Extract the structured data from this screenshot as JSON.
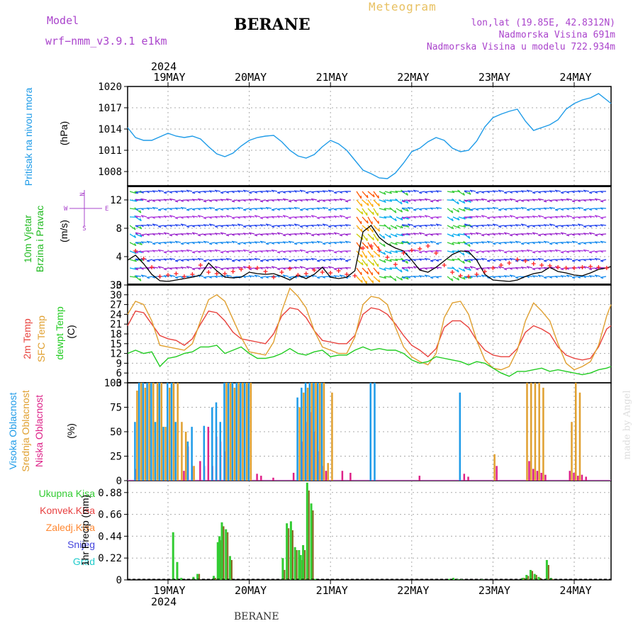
{
  "header": {
    "model_label": "Model",
    "model_name": "wrf−nmm_v3.9.1  e1km",
    "station_title": "BERANE",
    "app_title": "Meteogram",
    "coords": "lon,lat (19.85E, 42.8312N)",
    "elevation": "Nadmorska Visina 691m",
    "model_elevation": "Nadmorska Visina u modelu 722.934m",
    "year_top": "2024",
    "year_bottom": "2024",
    "footer_station": "BERANE",
    "credit": "made by Angel"
  },
  "colors": {
    "pressure": "#1e9be8",
    "temp2m": "#e8413c",
    "sfc": "#e0a030",
    "dew": "#22cc22",
    "high_cloud": "#1e9be8",
    "mid_cloud": "#e0a030",
    "low_cloud": "#dd2288",
    "total_precip": "#33cc33",
    "conv_precip": "#e84040",
    "frozen_precip": "#ff8833",
    "snow": "#4444dd",
    "graupel": "#22cccc",
    "wind_label": "#22bb22",
    "wind_compass": "#aa44cc",
    "model_text": "#aa44cc",
    "app_title": "#e8c060"
  },
  "panels": {
    "pressure": {
      "label": "Pritisak na nivou mora",
      "unit": "(hPa)"
    },
    "wind": {
      "label": "10m Vjetar\nBrzina i Pravac",
      "unit": "(m/s)",
      "compass": "N\n<–|–>\nW  –|–  E\nS"
    },
    "temp": {
      "label_2m": "2m Temp",
      "label_sfc": "SFC Temp",
      "label_dew": "dewpt Temp",
      "unit": "(C)"
    },
    "cloud": {
      "label_high": "Visoka Oblacnost",
      "label_mid": "Srednja Oblacnost",
      "label_low": "Niska Oblacnost",
      "unit": "(%)"
    },
    "precip": {
      "legend": [
        "Ukupna Kisa",
        "Konvek.Kisa",
        "Zaledj.Kisa",
        "Snijeg",
        "Grad"
      ],
      "unit": "1hr Precip (mm)"
    }
  },
  "chart_data": [
    {
      "type": "line",
      "panel": "pressure",
      "x_unit": "days since 19 May 2024 00:00",
      "x": [
        -0.5,
        -0.4,
        -0.3,
        -0.2,
        -0.1,
        0.0,
        0.1,
        0.2,
        0.3,
        0.4,
        0.5,
        0.6,
        0.7,
        0.8,
        0.9,
        1.0,
        1.1,
        1.2,
        1.3,
        1.4,
        1.5,
        1.6,
        1.7,
        1.8,
        1.9,
        2.0,
        2.1,
        2.2,
        2.3,
        2.4,
        2.5,
        2.6,
        2.7,
        2.8,
        2.9,
        3.0,
        3.1,
        3.2,
        3.3,
        3.4,
        3.5,
        3.6,
        3.7,
        3.8,
        3.9,
        4.0,
        4.1,
        4.2,
        4.3,
        4.4,
        4.5,
        4.6,
        4.7,
        4.8,
        4.9,
        5.0,
        5.1,
        5.2,
        5.3,
        5.4,
        5.5
      ],
      "values": [
        1014.2,
        1012.8,
        1012.4,
        1012.4,
        1012.9,
        1013.4,
        1013.0,
        1012.8,
        1013.0,
        1012.6,
        1011.5,
        1010.5,
        1010.1,
        1010.6,
        1011.6,
        1012.4,
        1012.8,
        1013.0,
        1013.1,
        1012.2,
        1011.0,
        1010.2,
        1009.9,
        1010.4,
        1011.5,
        1012.4,
        1011.9,
        1011.0,
        1009.6,
        1008.2,
        1007.7,
        1007.1,
        1007.0,
        1007.8,
        1009.2,
        1010.8,
        1011.3,
        1012.2,
        1012.8,
        1012.4,
        1011.3,
        1010.8,
        1011.0,
        1012.3,
        1014.3,
        1015.6,
        1016.1,
        1016.5,
        1016.8,
        1015.1,
        1013.8,
        1014.2,
        1014.6,
        1015.3,
        1016.8,
        1017.6,
        1018.1,
        1018.4,
        1019.0,
        1018.1,
        1017.6
      ],
      "ylim": [
        1006,
        1020
      ],
      "yticks": [
        1008,
        1011,
        1014,
        1017,
        1020
      ],
      "categories": [
        "19MAY",
        "20MAY",
        "21MAY",
        "22MAY",
        "23MAY",
        "24MAY"
      ]
    },
    {
      "type": "line",
      "panel": "wind",
      "x_unit": "days since 19 May 2024 00:00",
      "x": [
        -0.5,
        -0.4,
        -0.3,
        -0.2,
        -0.1,
        0.0,
        0.1,
        0.2,
        0.3,
        0.4,
        0.5,
        0.6,
        0.7,
        0.8,
        0.9,
        1.0,
        1.1,
        1.2,
        1.3,
        1.4,
        1.5,
        1.6,
        1.7,
        1.8,
        1.9,
        2.0,
        2.1,
        2.2,
        2.3,
        2.4,
        2.5,
        2.6,
        2.7,
        2.8,
        2.9,
        3.0,
        3.1,
        3.2,
        3.3,
        3.4,
        3.5,
        3.6,
        3.7,
        3.8,
        3.9,
        4.0,
        4.1,
        4.2,
        4.3,
        4.4,
        4.5,
        4.6,
        4.7,
        4.8,
        4.9,
        5.0,
        5.1,
        5.2,
        5.3,
        5.4,
        5.5
      ],
      "speed": [
        3.5,
        4.2,
        3.0,
        1.5,
        0.6,
        0.5,
        0.7,
        0.9,
        1.1,
        1.4,
        3.1,
        2.0,
        1.1,
        1.0,
        1.1,
        1.8,
        1.6,
        1.5,
        1.6,
        1.2,
        0.7,
        1.4,
        0.9,
        1.5,
        2.5,
        1.1,
        0.9,
        1.1,
        2.0,
        7.5,
        8.4,
        6.7,
        5.8,
        5.2,
        4.8,
        3.5,
        2.1,
        1.8,
        2.5,
        3.4,
        4.3,
        4.8,
        4.7,
        3.5,
        1.5,
        0.7,
        0.6,
        0.5,
        0.7,
        1.2,
        1.6,
        1.8,
        2.5,
        1.9,
        1.7,
        1.4,
        1.3,
        1.7,
        2.2,
        2.4,
        2.6
      ],
      "gust_marks": [
        4.5,
        4.8,
        3.7,
        2.5,
        1.2,
        1.4,
        1.6,
        1.2,
        1.5,
        2.8,
        1.8,
        1.6,
        1.6,
        1.9,
        2.2,
        2.5,
        2.4,
        1.9,
        1.1,
        1.8,
        2.3,
        1.4,
        1.6,
        2.1,
        1.8,
        1.7,
        2.0,
        1.5,
        1.3,
        5.2,
        5.5,
        4.9,
        3.9,
        2.9,
        4.5,
        4.9,
        5.1,
        5.5,
        4.5,
        2.8,
        1.8,
        1.3,
        1.2,
        1.5,
        1.9,
        2.4,
        2.8,
        3.1,
        3.6,
        3.4,
        3.0,
        2.8,
        2.7,
        2.5,
        2.4,
        2.4,
        2.5,
        2.6,
        2.5,
        2.4,
        2.4
      ],
      "ylim": [
        0,
        14
      ],
      "yticks": [
        0,
        4,
        8,
        12
      ],
      "categories": [
        "19MAY",
        "20MAY",
        "21MAY",
        "22MAY",
        "23MAY",
        "24MAY"
      ]
    },
    {
      "type": "line",
      "panel": "temperature",
      "x_unit": "days since 19 May 2024 00:00",
      "x": [
        -0.5,
        -0.4,
        -0.3,
        -0.2,
        -0.1,
        0.0,
        0.1,
        0.2,
        0.3,
        0.4,
        0.5,
        0.6,
        0.7,
        0.8,
        0.9,
        1.0,
        1.1,
        1.2,
        1.3,
        1.4,
        1.5,
        1.6,
        1.7,
        1.8,
        1.9,
        2.0,
        2.1,
        2.2,
        2.3,
        2.4,
        2.5,
        2.6,
        2.7,
        2.8,
        2.9,
        3.0,
        3.1,
        3.2,
        3.3,
        3.4,
        3.5,
        3.6,
        3.7,
        3.8,
        3.9,
        4.0,
        4.1,
        4.2,
        4.3,
        4.4,
        4.5,
        4.6,
        4.7,
        4.8,
        4.9,
        5.0,
        5.1,
        5.2,
        5.3,
        5.4,
        5.5
      ],
      "series": [
        {
          "name": "2m Temp",
          "values": [
            20.5,
            25.0,
            24.5,
            21.0,
            17.5,
            16.5,
            16.0,
            14.5,
            16.5,
            21.0,
            25.0,
            24.5,
            22.0,
            18.5,
            16.5,
            16.0,
            15.5,
            15.0,
            18.0,
            23.5,
            26.0,
            25.5,
            23.0,
            19.0,
            16.0,
            15.5,
            15.0,
            15.0,
            17.5,
            24.0,
            26.0,
            25.5,
            24.0,
            21.0,
            17.5,
            14.5,
            13.0,
            11.0,
            13.5,
            20.0,
            22.0,
            22.0,
            20.0,
            16.0,
            13.0,
            11.5,
            11.0,
            11.0,
            13.5,
            18.5,
            20.5,
            19.5,
            18.0,
            14.0,
            11.5,
            10.5,
            10.0,
            10.5,
            14.0,
            19.5,
            20.5
          ]
        },
        {
          "name": "SFC Temp",
          "values": [
            24.0,
            28.0,
            27.0,
            22.0,
            14.5,
            14.0,
            13.5,
            13.0,
            15.0,
            22.0,
            28.5,
            30.0,
            28.0,
            22.5,
            17.0,
            12.5,
            12.0,
            11.5,
            15.5,
            25.0,
            32.0,
            29.5,
            26.0,
            19.0,
            14.0,
            13.0,
            12.0,
            12.0,
            17.0,
            27.0,
            29.5,
            29.0,
            27.0,
            20.0,
            14.0,
            11.0,
            9.5,
            8.5,
            12.0,
            23.0,
            27.5,
            28.0,
            24.0,
            16.0,
            10.0,
            7.5,
            7.0,
            8.0,
            13.0,
            22.0,
            27.5,
            25.0,
            22.0,
            15.0,
            9.0,
            7.0,
            8.0,
            9.5,
            14.5,
            23.5,
            27.0
          ]
        },
        {
          "name": "dewpt Temp",
          "values": [
            12.0,
            13.0,
            12.0,
            12.5,
            8.0,
            10.5,
            11.0,
            12.0,
            12.5,
            14.0,
            14.0,
            14.5,
            12.0,
            13.0,
            14.0,
            12.0,
            10.5,
            10.5,
            11.0,
            12.0,
            13.5,
            12.0,
            11.5,
            12.5,
            13.0,
            11.0,
            11.5,
            11.5,
            13.0,
            14.0,
            13.0,
            13.5,
            13.0,
            13.0,
            12.0,
            10.0,
            9.0,
            9.5,
            11.0,
            10.5,
            10.0,
            9.5,
            8.5,
            9.5,
            9.0,
            7.5,
            6.0,
            5.0,
            6.5,
            6.5,
            7.0,
            7.5,
            6.5,
            7.0,
            6.5,
            6.0,
            5.5,
            6.0,
            7.0,
            7.5,
            8.0
          ]
        }
      ],
      "ylim": [
        3,
        33
      ],
      "yticks": [
        3,
        6,
        9,
        12,
        15,
        18,
        21,
        24,
        27,
        30,
        33
      ],
      "categories": [
        "19MAY",
        "20MAY",
        "21MAY",
        "22MAY",
        "23MAY",
        "24MAY"
      ]
    },
    {
      "type": "bar",
      "panel": "cloud",
      "x_unit": "days since 19 May 2024 00:00",
      "x": [
        -0.45,
        -0.4,
        -0.35,
        -0.3,
        -0.25,
        -0.2,
        -0.15,
        -0.1,
        -0.05,
        0.0,
        0.05,
        0.1,
        0.15,
        0.2,
        0.25,
        0.3,
        0.35,
        0.4,
        0.45,
        0.5,
        0.55,
        0.6,
        0.65,
        0.7,
        0.75,
        0.8,
        0.85,
        0.9,
        0.95,
        1.0,
        1.05,
        1.1,
        1.25,
        1.5,
        1.6,
        1.65,
        1.7,
        1.75,
        1.8,
        1.85,
        1.9,
        1.95,
        2.0,
        2.1,
        2.2,
        2.5,
        2.55,
        3.05,
        3.6,
        3.65,
        4.0,
        4.4,
        4.45,
        4.5,
        4.55,
        4.6,
        4.9,
        4.95,
        5.0,
        5.05,
        5.1
      ],
      "series": [
        {
          "name": "Visoka Oblacnost",
          "values": [
            0,
            60,
            100,
            100,
            100,
            100,
            60,
            100,
            55,
            100,
            100,
            60,
            0,
            0,
            40,
            55,
            0,
            0,
            56,
            0,
            75,
            80,
            60,
            100,
            100,
            100,
            100,
            100,
            100,
            100,
            0,
            0,
            0,
            0,
            85,
            95,
            100,
            100,
            100,
            100,
            100,
            0,
            0,
            0,
            0,
            100,
            100,
            0,
            90,
            0,
            0,
            0,
            0,
            0,
            0,
            0,
            0,
            0,
            0,
            0,
            0
          ]
        },
        {
          "name": "Srednja Oblacnost",
          "values": [
            0,
            92,
            100,
            95,
            100,
            100,
            100,
            100,
            55,
            95,
            100,
            100,
            60,
            50,
            0,
            15,
            0,
            0,
            0,
            0,
            0,
            0,
            0,
            100,
            100,
            95,
            100,
            100,
            100,
            100,
            0,
            0,
            0,
            0,
            75,
            90,
            95,
            100,
            100,
            100,
            100,
            18,
            90,
            0,
            0,
            0,
            0,
            0,
            0,
            0,
            27,
            100,
            100,
            100,
            100,
            95,
            0,
            60,
            100,
            90,
            0
          ]
        },
        {
          "name": "Niska Oblacnost",
          "values": [
            12,
            0,
            0,
            0,
            0,
            0,
            0,
            0,
            0,
            0,
            0,
            0,
            10,
            35,
            15,
            0,
            20,
            15,
            55,
            15,
            45,
            40,
            30,
            0,
            0,
            0,
            0,
            0,
            0,
            0,
            7,
            5,
            3,
            8,
            40,
            60,
            70,
            50,
            30,
            15,
            10,
            0,
            0,
            10,
            8,
            0,
            0,
            5,
            7,
            4,
            15,
            20,
            12,
            10,
            8,
            6,
            10,
            8,
            5,
            6,
            4
          ]
        }
      ],
      "ylim": [
        0,
        100
      ],
      "yticks": [
        0,
        25,
        50,
        75,
        100
      ],
      "categories": [
        "19MAY",
        "20MAY",
        "21MAY",
        "22MAY",
        "23MAY",
        "24MAY"
      ]
    },
    {
      "type": "bar",
      "panel": "precip",
      "x_unit": "days since 19 May 2024 00:00",
      "x": [
        0.05,
        0.1,
        0.15,
        0.3,
        0.35,
        0.55,
        0.6,
        0.62,
        0.65,
        0.7,
        0.75,
        1.4,
        1.45,
        1.5,
        1.55,
        1.6,
        1.62,
        1.65,
        1.7,
        1.75,
        1.8,
        3.45,
        3.5,
        3.55,
        3.6,
        3.85,
        4.35,
        4.4,
        4.45,
        4.5,
        4.55,
        4.65,
        4.7,
        5.5,
        5.55
      ],
      "series": [
        {
          "name": "Ukupna Kisa",
          "values": [
            0.48,
            0.18,
            0.02,
            0.03,
            0.06,
            0.04,
            0.38,
            0.44,
            0.58,
            0.51,
            0.24,
            0.22,
            0.57,
            0.59,
            0.33,
            0.3,
            0.25,
            0.35,
            0.98,
            0.77,
            0.01,
            0.01,
            0.02,
            0.01,
            0.01,
            0.01,
            0.02,
            0.05,
            0.1,
            0.06,
            0.03,
            0.2,
            0.02,
            0.04,
            0.18
          ]
        },
        {
          "name": "Konvek.Kisa",
          "values": [
            0.0,
            0.0,
            0.0,
            0.0,
            0.06,
            0.02,
            0.3,
            0.4,
            0.54,
            0.48,
            0.2,
            0.1,
            0.52,
            0.5,
            0.3,
            0.25,
            0.2,
            0.3,
            0.9,
            0.7,
            0.0,
            0.0,
            0.0,
            0.0,
            0.0,
            0.0,
            0.02,
            0.04,
            0.09,
            0.05,
            0.02,
            0.15,
            0.01,
            0.02,
            0.15
          ]
        }
      ],
      "ylim": [
        0,
        1.0
      ],
      "yticks": [
        0,
        0.22,
        0.44,
        0.66,
        0.88
      ],
      "categories": [
        "19MAY",
        "20MAY",
        "21MAY",
        "22MAY",
        "23MAY",
        "24MAY"
      ]
    }
  ]
}
